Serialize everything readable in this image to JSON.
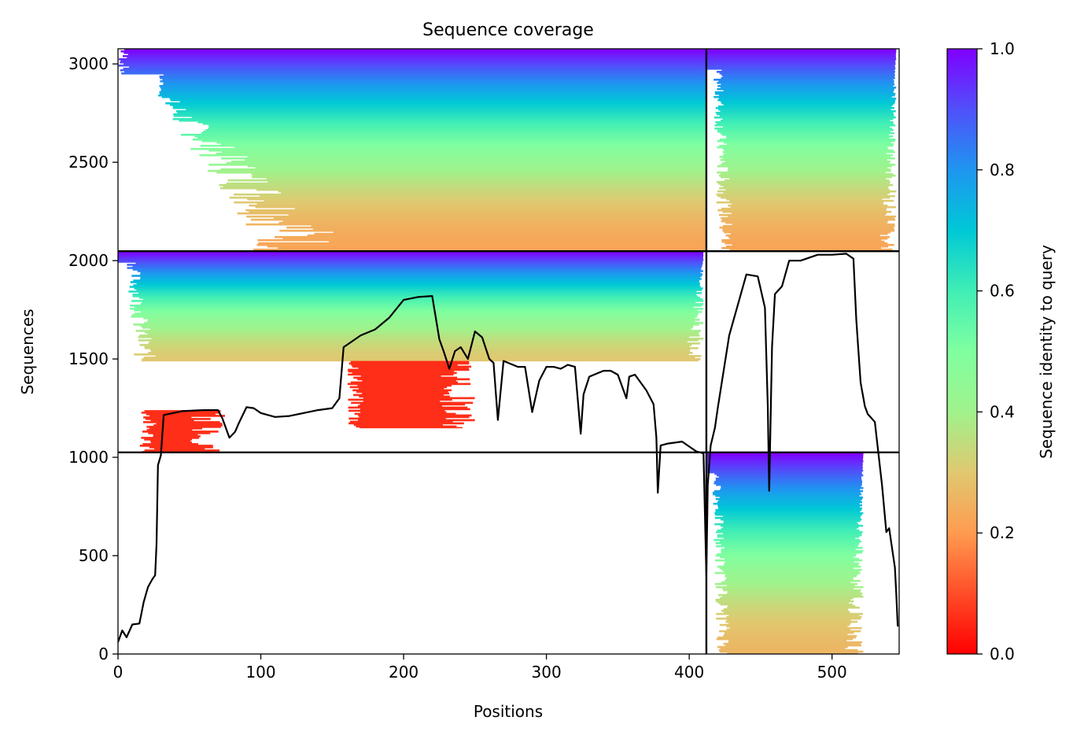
{
  "chart_data": {
    "type": "heatmap",
    "title": "Sequence coverage",
    "xlabel": "Positions",
    "ylabel": "Sequences",
    "xlim": [
      0,
      547
    ],
    "ylim": [
      0,
      3077
    ],
    "xticks": [
      0,
      100,
      200,
      300,
      400,
      500
    ],
    "yticks": [
      0,
      500,
      1000,
      1500,
      2000,
      2500,
      3000
    ],
    "grid": false,
    "colorbar": {
      "label": "Sequence identity to query",
      "range": [
        0,
        1
      ],
      "ticks": [
        0.0,
        0.2,
        0.4,
        0.6,
        0.8,
        1.0
      ],
      "tick_labels": [
        "0.0",
        "0.2",
        "0.4",
        "0.6",
        "0.8",
        "1.0"
      ],
      "colormap": "rainbow_r"
    },
    "block_boundaries": {
      "positions": [
        412
      ],
      "sequences": [
        1025,
        2048
      ]
    },
    "blocks": [
      {
        "name": "upper-left",
        "x": [
          0,
          412
        ],
        "y": [
          2048,
          3077
        ],
        "pattern": "stair",
        "x_start_max": 155,
        "y_stair_min": 2150,
        "x_end": 412,
        "identity_top": 1.0,
        "identity_bottom": 0.22
      },
      {
        "name": "upper-right",
        "x": [
          412,
          547
        ],
        "y": [
          2048,
          3077
        ],
        "pattern": "band",
        "x_start_max": 432,
        "x_end_max": 545,
        "identity_top": 1.0,
        "identity_bottom": 0.22
      },
      {
        "name": "middle-left-main",
        "x": [
          0,
          412
        ],
        "y": [
          1490,
          2048
        ],
        "pattern": "band",
        "x_start_max": 27,
        "x_end_max": 410,
        "identity_top": 1.0,
        "identity_bottom": 0.3
      },
      {
        "name": "middle-left-red-a",
        "x": [
          160,
          250
        ],
        "y": [
          1150,
          1490
        ],
        "pattern": "band",
        "identity_top": 0.06,
        "identity_bottom": 0.06
      },
      {
        "name": "middle-left-red-b",
        "x": [
          15,
          75
        ],
        "y": [
          1025,
          1240
        ],
        "pattern": "band",
        "identity_top": 0.06,
        "identity_bottom": 0.06
      },
      {
        "name": "lower-right",
        "x": [
          412,
          547
        ],
        "y": [
          0,
          1025
        ],
        "pattern": "band",
        "x_start_max": 430,
        "x_end_max": 522,
        "identity_top": 1.0,
        "identity_bottom": 0.26
      }
    ],
    "series": [
      {
        "type": "line",
        "color": "#000000",
        "x": [
          0,
          3,
          6,
          10,
          15,
          18,
          21,
          24,
          26,
          27,
          28,
          30,
          32,
          45,
          60,
          70,
          73,
          78,
          82,
          85,
          90,
          95,
          100,
          110,
          120,
          130,
          140,
          150,
          155,
          158,
          162,
          170,
          180,
          190,
          200,
          210,
          220,
          225,
          228,
          232,
          236,
          240,
          245,
          250,
          255,
          260,
          263,
          266,
          270,
          280,
          285,
          290,
          295,
          300,
          305,
          310,
          315,
          320,
          324,
          326,
          330,
          340,
          345,
          350,
          356,
          358,
          362,
          370,
          375,
          377,
          378,
          380,
          385,
          395,
          405,
          410,
          412,
          413,
          415,
          418,
          420,
          428,
          435,
          440,
          448,
          453,
          455,
          456,
          458,
          460,
          465,
          470,
          478,
          490,
          500,
          510,
          515,
          517,
          520,
          523,
          525,
          530,
          535,
          538,
          540,
          542,
          544,
          545,
          546
        ],
        "y": [
          60,
          120,
          85,
          150,
          155,
          265,
          340,
          380,
          400,
          560,
          960,
          1010,
          1215,
          1235,
          1240,
          1240,
          1200,
          1100,
          1130,
          1180,
          1255,
          1250,
          1225,
          1205,
          1210,
          1225,
          1240,
          1250,
          1300,
          1560,
          1580,
          1620,
          1650,
          1710,
          1800,
          1815,
          1820,
          1600,
          1540,
          1450,
          1540,
          1560,
          1500,
          1640,
          1610,
          1500,
          1480,
          1190,
          1490,
          1460,
          1460,
          1230,
          1390,
          1460,
          1460,
          1450,
          1470,
          1460,
          1120,
          1320,
          1410,
          1440,
          1440,
          1420,
          1300,
          1410,
          1420,
          1340,
          1270,
          1100,
          820,
          1060,
          1070,
          1080,
          1030,
          1020,
          400,
          860,
          1060,
          1150,
          1250,
          1620,
          1800,
          1930,
          1920,
          1760,
          1260,
          830,
          1560,
          1830,
          1870,
          2000,
          2000,
          2030,
          2030,
          2035,
          2010,
          1700,
          1380,
          1260,
          1220,
          1180,
          860,
          620,
          640,
          540,
          440,
          300,
          140
        ]
      }
    ]
  }
}
